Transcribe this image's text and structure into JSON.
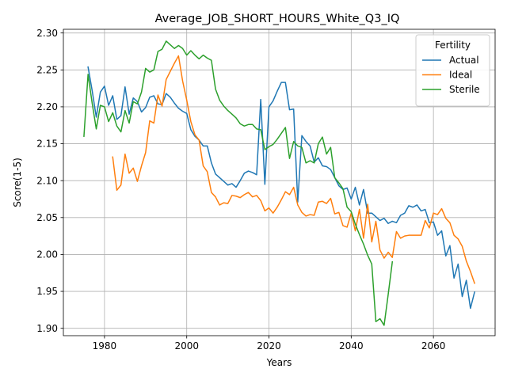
{
  "chart_data": {
    "type": "line",
    "title": "Average_JOB_SHORT_HOURS_White_Q3_IQ",
    "xlabel": "Years",
    "ylabel": "Score(1-5)",
    "xlim": [
      1970,
      2075
    ],
    "ylim": [
      1.89,
      2.305
    ],
    "xticks": [
      1980,
      2000,
      2020,
      2040,
      2060
    ],
    "yticks": [
      1.9,
      1.95,
      2.0,
      2.05,
      2.1,
      2.15,
      2.2,
      2.25,
      2.3
    ],
    "grid": true,
    "legend": {
      "title": "Fertility",
      "placement": "top-right"
    },
    "series": [
      {
        "name": "Actual",
        "color": "#1f77b4",
        "points": [
          [
            1976,
            2.254
          ],
          [
            1977,
            2.222
          ],
          [
            1978,
            2.186
          ],
          [
            1979,
            2.22
          ],
          [
            1980,
            2.228
          ],
          [
            1981,
            2.202
          ],
          [
            1982,
            2.215
          ],
          [
            1983,
            2.183
          ],
          [
            1984,
            2.188
          ],
          [
            1985,
            2.227
          ],
          [
            1986,
            2.19
          ],
          [
            1987,
            2.212
          ],
          [
            1988,
            2.207
          ],
          [
            1989,
            2.193
          ],
          [
            1990,
            2.199
          ],
          [
            1991,
            2.213
          ],
          [
            1992,
            2.215
          ],
          [
            1993,
            2.204
          ],
          [
            1994,
            2.203
          ],
          [
            1995,
            2.218
          ],
          [
            1996,
            2.213
          ],
          [
            1997,
            2.205
          ],
          [
            1998,
            2.198
          ],
          [
            1999,
            2.194
          ],
          [
            2000,
            2.191
          ],
          [
            2001,
            2.169
          ],
          [
            2002,
            2.16
          ],
          [
            2003,
            2.155
          ],
          [
            2004,
            2.147
          ],
          [
            2005,
            2.147
          ],
          [
            2006,
            2.124
          ],
          [
            2007,
            2.109
          ],
          [
            2008,
            2.104
          ],
          [
            2009,
            2.099
          ],
          [
            2010,
            2.094
          ],
          [
            2011,
            2.096
          ],
          [
            2012,
            2.091
          ],
          [
            2013,
            2.1
          ],
          [
            2014,
            2.11
          ],
          [
            2015,
            2.113
          ],
          [
            2016,
            2.111
          ],
          [
            2017,
            2.108
          ],
          [
            2018,
            2.21
          ],
          [
            2019,
            2.095
          ],
          [
            2020,
            2.2
          ],
          [
            2021,
            2.208
          ],
          [
            2022,
            2.221
          ],
          [
            2023,
            2.233
          ],
          [
            2024,
            2.233
          ],
          [
            2025,
            2.196
          ],
          [
            2026,
            2.197
          ],
          [
            2027,
            2.071
          ],
          [
            2028,
            2.161
          ],
          [
            2029,
            2.153
          ],
          [
            2030,
            2.147
          ],
          [
            2031,
            2.125
          ],
          [
            2032,
            2.131
          ],
          [
            2033,
            2.12
          ],
          [
            2034,
            2.119
          ],
          [
            2035,
            2.115
          ],
          [
            2036,
            2.104
          ],
          [
            2037,
            2.093
          ],
          [
            2038,
            2.088
          ],
          [
            2039,
            2.09
          ],
          [
            2040,
            2.075
          ],
          [
            2041,
            2.091
          ],
          [
            2042,
            2.067
          ],
          [
            2043,
            2.088
          ],
          [
            2044,
            2.056
          ],
          [
            2045,
            2.056
          ],
          [
            2046,
            2.051
          ],
          [
            2047,
            2.046
          ],
          [
            2048,
            2.049
          ],
          [
            2049,
            2.042
          ],
          [
            2050,
            2.045
          ],
          [
            2051,
            2.043
          ],
          [
            2052,
            2.053
          ],
          [
            2053,
            2.056
          ],
          [
            2054,
            2.066
          ],
          [
            2055,
            2.064
          ],
          [
            2056,
            2.067
          ],
          [
            2057,
            2.059
          ],
          [
            2058,
            2.061
          ],
          [
            2059,
            2.043
          ],
          [
            2060,
            2.044
          ],
          [
            2061,
            2.026
          ],
          [
            2062,
            2.032
          ],
          [
            2063,
            1.998
          ],
          [
            2064,
            2.012
          ],
          [
            2065,
            1.968
          ],
          [
            2066,
            1.987
          ],
          [
            2067,
            1.943
          ],
          [
            2068,
            1.965
          ],
          [
            2069,
            1.927
          ],
          [
            2070,
            1.949
          ]
        ]
      },
      {
        "name": "Ideal",
        "color": "#ff7f0e",
        "points": [
          [
            1982,
            2.132
          ],
          [
            1983,
            2.087
          ],
          [
            1984,
            2.094
          ],
          [
            1985,
            2.136
          ],
          [
            1986,
            2.11
          ],
          [
            1987,
            2.117
          ],
          [
            1988,
            2.099
          ],
          [
            1989,
            2.12
          ],
          [
            1990,
            2.138
          ],
          [
            1991,
            2.181
          ],
          [
            1992,
            2.178
          ],
          [
            1993,
            2.216
          ],
          [
            1994,
            2.201
          ],
          [
            1995,
            2.237
          ],
          [
            1996,
            2.248
          ],
          [
            1997,
            2.259
          ],
          [
            1998,
            2.269
          ],
          [
            1999,
            2.235
          ],
          [
            2000,
            2.209
          ],
          [
            2001,
            2.18
          ],
          [
            2002,
            2.162
          ],
          [
            2003,
            2.155
          ],
          [
            2004,
            2.12
          ],
          [
            2005,
            2.112
          ],
          [
            2006,
            2.084
          ],
          [
            2007,
            2.078
          ],
          [
            2008,
            2.067
          ],
          [
            2009,
            2.07
          ],
          [
            2010,
            2.069
          ],
          [
            2011,
            2.08
          ],
          [
            2012,
            2.079
          ],
          [
            2013,
            2.077
          ],
          [
            2014,
            2.081
          ],
          [
            2015,
            2.084
          ],
          [
            2016,
            2.078
          ],
          [
            2017,
            2.08
          ],
          [
            2018,
            2.073
          ],
          [
            2019,
            2.059
          ],
          [
            2020,
            2.063
          ],
          [
            2021,
            2.056
          ],
          [
            2022,
            2.064
          ],
          [
            2023,
            2.074
          ],
          [
            2024,
            2.085
          ],
          [
            2025,
            2.081
          ],
          [
            2026,
            2.091
          ],
          [
            2027,
            2.067
          ],
          [
            2028,
            2.057
          ],
          [
            2029,
            2.052
          ],
          [
            2030,
            2.054
          ],
          [
            2031,
            2.053
          ],
          [
            2032,
            2.071
          ],
          [
            2033,
            2.072
          ],
          [
            2034,
            2.069
          ],
          [
            2035,
            2.076
          ],
          [
            2036,
            2.055
          ],
          [
            2037,
            2.057
          ],
          [
            2038,
            2.039
          ],
          [
            2039,
            2.037
          ],
          [
            2040,
            2.056
          ],
          [
            2041,
            2.032
          ],
          [
            2042,
            2.061
          ],
          [
            2043,
            2.022
          ],
          [
            2044,
            2.068
          ],
          [
            2045,
            2.017
          ],
          [
            2046,
            2.045
          ],
          [
            2047,
            2.006
          ],
          [
            2048,
            1.995
          ],
          [
            2049,
            2.003
          ],
          [
            2050,
            1.996
          ],
          [
            2051,
            2.031
          ],
          [
            2052,
            2.022
          ],
          [
            2053,
            2.025
          ],
          [
            2054,
            2.026
          ],
          [
            2055,
            2.026
          ],
          [
            2056,
            2.026
          ],
          [
            2057,
            2.026
          ],
          [
            2058,
            2.046
          ],
          [
            2059,
            2.036
          ],
          [
            2060,
            2.056
          ],
          [
            2061,
            2.054
          ],
          [
            2062,
            2.062
          ],
          [
            2063,
            2.049
          ],
          [
            2064,
            2.043
          ],
          [
            2065,
            2.026
          ],
          [
            2066,
            2.021
          ],
          [
            2067,
            2.011
          ],
          [
            2068,
            1.991
          ],
          [
            2069,
            1.977
          ],
          [
            2070,
            1.961
          ]
        ]
      },
      {
        "name": "Sterile",
        "color": "#2ca02c",
        "points": [
          [
            1975,
            2.16
          ],
          [
            1976,
            2.244
          ],
          [
            1977,
            2.205
          ],
          [
            1978,
            2.17
          ],
          [
            1979,
            2.202
          ],
          [
            1980,
            2.2
          ],
          [
            1981,
            2.18
          ],
          [
            1982,
            2.192
          ],
          [
            1983,
            2.174
          ],
          [
            1984,
            2.166
          ],
          [
            1985,
            2.195
          ],
          [
            1986,
            2.178
          ],
          [
            1987,
            2.207
          ],
          [
            1988,
            2.204
          ],
          [
            1989,
            2.22
          ],
          [
            1990,
            2.252
          ],
          [
            1991,
            2.247
          ],
          [
            1992,
            2.25
          ],
          [
            1993,
            2.275
          ],
          [
            1994,
            2.278
          ],
          [
            1995,
            2.289
          ],
          [
            1996,
            2.284
          ],
          [
            1997,
            2.279
          ],
          [
            1998,
            2.283
          ],
          [
            1999,
            2.279
          ],
          [
            2000,
            2.27
          ],
          [
            2001,
            2.276
          ],
          [
            2002,
            2.27
          ],
          [
            2003,
            2.265
          ],
          [
            2004,
            2.27
          ],
          [
            2005,
            2.266
          ],
          [
            2006,
            2.263
          ],
          [
            2007,
            2.224
          ],
          [
            2008,
            2.209
          ],
          [
            2009,
            2.201
          ],
          [
            2010,
            2.195
          ],
          [
            2011,
            2.19
          ],
          [
            2012,
            2.185
          ],
          [
            2013,
            2.177
          ],
          [
            2014,
            2.174
          ],
          [
            2015,
            2.176
          ],
          [
            2016,
            2.176
          ],
          [
            2017,
            2.17
          ],
          [
            2018,
            2.169
          ],
          [
            2019,
            2.142
          ],
          [
            2020,
            2.146
          ],
          [
            2021,
            2.149
          ],
          [
            2022,
            2.156
          ],
          [
            2023,
            2.164
          ],
          [
            2024,
            2.172
          ],
          [
            2025,
            2.13
          ],
          [
            2026,
            2.153
          ],
          [
            2027,
            2.147
          ],
          [
            2028,
            2.145
          ],
          [
            2029,
            2.124
          ],
          [
            2030,
            2.127
          ],
          [
            2031,
            2.124
          ],
          [
            2032,
            2.15
          ],
          [
            2033,
            2.159
          ],
          [
            2034,
            2.136
          ],
          [
            2035,
            2.145
          ],
          [
            2036,
            2.104
          ],
          [
            2037,
            2.097
          ],
          [
            2038,
            2.089
          ],
          [
            2039,
            2.064
          ],
          [
            2040,
            2.058
          ],
          [
            2041,
            2.041
          ],
          [
            2042,
            2.027
          ],
          [
            2043,
            2.014
          ],
          [
            2044,
            1.999
          ],
          [
            2045,
            1.987
          ],
          [
            2046,
            1.909
          ],
          [
            2047,
            1.913
          ],
          [
            2048,
            1.904
          ],
          [
            2049,
            1.946
          ],
          [
            2050,
            1.99
          ]
        ]
      }
    ]
  }
}
